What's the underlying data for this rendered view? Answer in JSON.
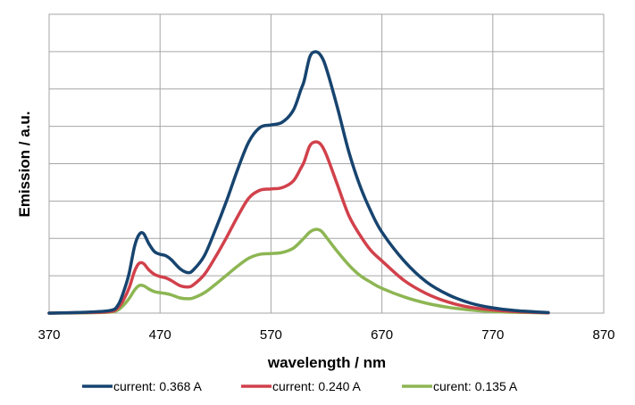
{
  "chart_data": {
    "type": "line",
    "title": "",
    "xlabel": "wavelength / nm",
    "ylabel": "Emission / a.u.",
    "xlim": [
      370,
      870
    ],
    "ylim": [
      0,
      1
    ],
    "x_ticks": [
      "370",
      "470",
      "570",
      "670",
      "770",
      "870"
    ],
    "y_ticks_labeled": false,
    "y_gridlines": 8,
    "grid": true,
    "legend_position": "bottom",
    "series": [
      {
        "name": "current: 0.368 A",
        "color": "#17446f",
        "x": [
          370,
          400,
          425,
          432,
          437,
          442,
          447,
          451,
          455,
          460,
          465,
          470,
          475,
          480,
          488,
          495,
          500,
          510,
          520,
          530,
          540,
          550,
          560,
          570,
          580,
          590,
          597,
          600,
          605,
          610,
          615,
          620,
          630,
          640,
          650,
          660,
          670,
          690,
          710,
          730,
          750,
          770,
          790,
          820
        ],
        "y": [
          0,
          0.003,
          0.01,
          0.03,
          0.08,
          0.15,
          0.255,
          0.3,
          0.305,
          0.265,
          0.235,
          0.225,
          0.22,
          0.205,
          0.17,
          0.155,
          0.165,
          0.22,
          0.32,
          0.43,
          0.55,
          0.655,
          0.71,
          0.72,
          0.73,
          0.775,
          0.855,
          0.89,
          0.98,
          1.0,
          0.985,
          0.935,
          0.785,
          0.62,
          0.49,
          0.39,
          0.31,
          0.2,
          0.12,
          0.07,
          0.038,
          0.02,
          0.01,
          0.002
        ]
      },
      {
        "name": "current: 0.240 A",
        "color": "#d1414b",
        "x": [
          370,
          400,
          425,
          432,
          437,
          442,
          447,
          451,
          455,
          460,
          465,
          470,
          475,
          480,
          488,
          495,
          500,
          510,
          520,
          530,
          540,
          550,
          560,
          570,
          580,
          590,
          597,
          600,
          605,
          610,
          615,
          620,
          630,
          640,
          650,
          660,
          670,
          690,
          710,
          730,
          750,
          770,
          790,
          820
        ],
        "y": [
          0,
          0.002,
          0.006,
          0.02,
          0.05,
          0.095,
          0.16,
          0.19,
          0.19,
          0.165,
          0.148,
          0.14,
          0.135,
          0.125,
          0.105,
          0.1,
          0.108,
          0.148,
          0.215,
          0.29,
          0.37,
          0.44,
          0.47,
          0.475,
          0.48,
          0.505,
          0.555,
          0.58,
          0.64,
          0.655,
          0.645,
          0.605,
          0.49,
          0.375,
          0.3,
          0.24,
          0.2,
          0.125,
          0.075,
          0.042,
          0.022,
          0.012,
          0.006,
          0.001
        ]
      },
      {
        "name": "curent: 0.135 A",
        "color": "#8db653",
        "x": [
          370,
          400,
          425,
          432,
          437,
          442,
          447,
          451,
          455,
          460,
          465,
          470,
          475,
          480,
          488,
          495,
          500,
          510,
          520,
          530,
          540,
          550,
          560,
          570,
          580,
          590,
          597,
          600,
          605,
          610,
          615,
          620,
          630,
          640,
          650,
          660,
          670,
          690,
          710,
          730,
          750,
          770,
          790,
          820
        ],
        "y": [
          0,
          0.001,
          0.004,
          0.012,
          0.03,
          0.055,
          0.088,
          0.105,
          0.105,
          0.092,
          0.082,
          0.078,
          0.075,
          0.07,
          0.058,
          0.055,
          0.058,
          0.078,
          0.11,
          0.145,
          0.18,
          0.21,
          0.225,
          0.228,
          0.232,
          0.248,
          0.275,
          0.288,
          0.31,
          0.32,
          0.315,
          0.29,
          0.235,
          0.185,
          0.145,
          0.118,
          0.095,
          0.062,
          0.038,
          0.022,
          0.012,
          0.006,
          0.003,
          0.001
        ]
      }
    ]
  }
}
